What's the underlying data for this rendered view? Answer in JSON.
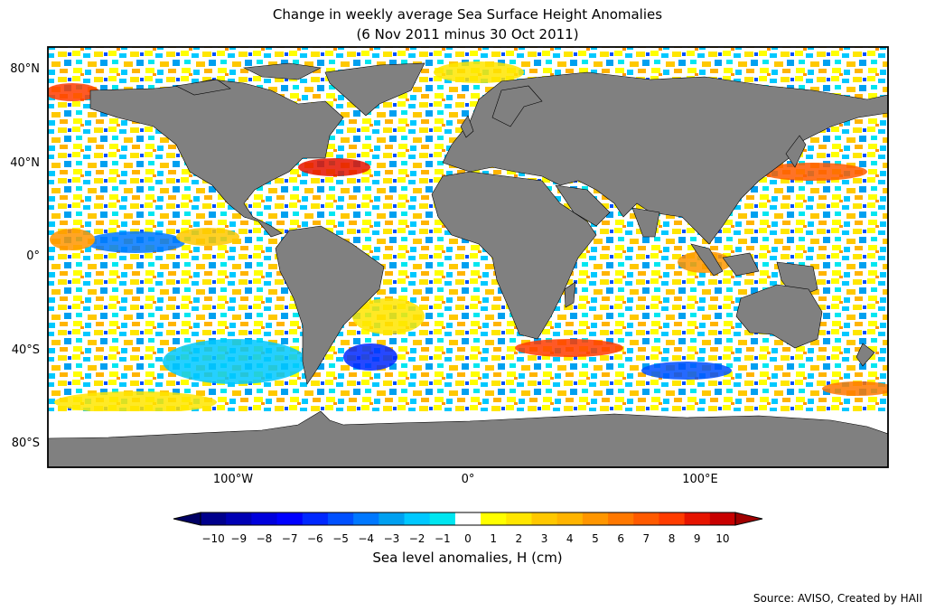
{
  "title_line1": "Change in weekly average Sea Surface Height Anomalies",
  "title_line2": "(6 Nov 2011 minus 30 Oct 2011)",
  "lat_labels": [
    "80°N",
    "40°N",
    "0°",
    "40°S",
    "80°S"
  ],
  "lon_labels": [
    "100°W",
    "0°",
    "100°E"
  ],
  "colorbar": {
    "label": "Sea level anomalies, H (cm)",
    "ticks": [
      "−10",
      "−9",
      "−8",
      "−7",
      "−6",
      "−5",
      "−4",
      "−3",
      "−2",
      "−1",
      "0",
      "1",
      "2",
      "3",
      "4",
      "5",
      "6",
      "7",
      "8",
      "9",
      "10"
    ],
    "colors": [
      "#000064",
      "#00008c",
      "#0000b4",
      "#0000dc",
      "#0000ff",
      "#0028ff",
      "#0050ff",
      "#0078ff",
      "#00a0f0",
      "#00c8ff",
      "#00e6f0",
      "#ffffff",
      "#ffff00",
      "#ffe600",
      "#ffc800",
      "#ffb400",
      "#ff9600",
      "#ff7800",
      "#ff5a00",
      "#ff3c00",
      "#e61400",
      "#c80000",
      "#a00000"
    ]
  },
  "land_color": "#808080",
  "source": "Source: AVISO, Created by HAII"
}
